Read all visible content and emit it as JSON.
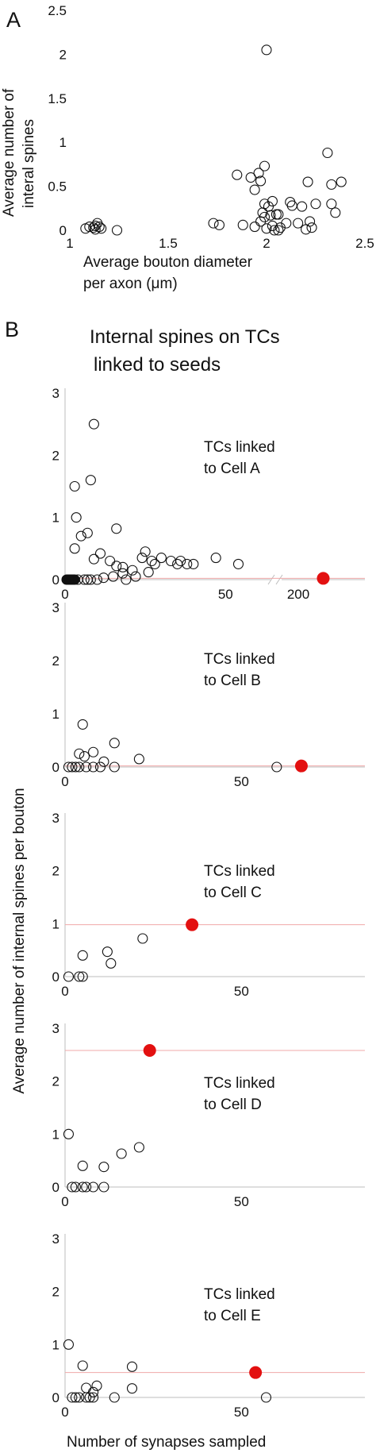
{
  "figure": {
    "panel_a_label": "A",
    "panel_b_label": "B",
    "panel_b_title_line1": "Internal spines on TCs",
    "panel_b_title_line2": "linked to seeds",
    "shared_ylabel": "Average number of internal spines per bouton",
    "shared_xlabel": "Number of synapses sampled",
    "highlight_color": "#e31010"
  },
  "chart_data": [
    {
      "id": "A",
      "type": "scatter",
      "xlabel_line1": "Average bouton diameter",
      "xlabel_line2": "per axon (μm)",
      "ylabel_line1": "Average number of",
      "ylabel_line2": "interal spines",
      "xlim": [
        1,
        2.5
      ],
      "ylim": [
        0,
        2.5
      ],
      "xticks": [
        "1",
        "1.5",
        "2",
        "2.5"
      ],
      "yticks": [
        "0",
        "0.5",
        "1",
        "1.5",
        "2",
        "2.5"
      ],
      "grid": false,
      "series": [
        {
          "points": [
            [
              1.08,
              0.02
            ],
            [
              1.1,
              0.04
            ],
            [
              1.12,
              0.03
            ],
            [
              1.13,
              0.05
            ],
            [
              1.13,
              0.01
            ],
            [
              1.14,
              0.08
            ],
            [
              1.15,
              0.04
            ],
            [
              1.16,
              0.02
            ],
            [
              1.24,
              0.0
            ],
            [
              1.73,
              0.08
            ],
            [
              1.76,
              0.06
            ],
            [
              1.85,
              0.63
            ],
            [
              1.88,
              0.06
            ],
            [
              1.92,
              0.6
            ],
            [
              1.94,
              0.46
            ],
            [
              1.94,
              0.04
            ],
            [
              1.96,
              0.65
            ],
            [
              1.97,
              0.56
            ],
            [
              1.97,
              0.1
            ],
            [
              1.98,
              0.2
            ],
            [
              1.99,
              0.73
            ],
            [
              1.99,
              0.3
            ],
            [
              1.99,
              0.15
            ],
            [
              2.0,
              2.05
            ],
            [
              2.0,
              0.02
            ],
            [
              2.01,
              0.27
            ],
            [
              2.02,
              0.17
            ],
            [
              2.03,
              0.33
            ],
            [
              2.03,
              0.05
            ],
            [
              2.04,
              0.0
            ],
            [
              2.05,
              0.18
            ],
            [
              2.06,
              0.18
            ],
            [
              2.06,
              0.0
            ],
            [
              2.07,
              0.03
            ],
            [
              2.1,
              0.08
            ],
            [
              2.12,
              0.32
            ],
            [
              2.13,
              0.28
            ],
            [
              2.16,
              0.08
            ],
            [
              2.18,
              0.27
            ],
            [
              2.2,
              0.01
            ],
            [
              2.21,
              0.55
            ],
            [
              2.22,
              0.1
            ],
            [
              2.23,
              0.03
            ],
            [
              2.25,
              0.3
            ],
            [
              2.31,
              0.88
            ],
            [
              2.33,
              0.52
            ],
            [
              2.33,
              0.3
            ],
            [
              2.35,
              0.2
            ],
            [
              2.38,
              0.55
            ]
          ]
        }
      ]
    },
    {
      "id": "B-A",
      "type": "scatter",
      "annotation_line1": "TCs linked",
      "annotation_line2": "to Cell A",
      "xlim": [
        0,
        240
      ],
      "axis_break": [
        65,
        190
      ],
      "ylim": [
        0,
        3
      ],
      "xticks": [
        "0",
        "50",
        "200"
      ],
      "yticks": [
        "0",
        "1",
        "2",
        "3"
      ],
      "reference_y": 0.02,
      "highlight_point": [
        215,
        0.02
      ],
      "series": [
        {
          "name": "filled",
          "points": [
            [
              0.5,
              0
            ],
            [
              1,
              0
            ],
            [
              1.5,
              0
            ],
            [
              2,
              0
            ],
            [
              2.5,
              0
            ],
            [
              3,
              0
            ]
          ]
        },
        {
          "name": "open",
          "points": [
            [
              3,
              0.5
            ],
            [
              3,
              1.5
            ],
            [
              3.5,
              1.0
            ],
            [
              4,
              0
            ],
            [
              5,
              0.7
            ],
            [
              6,
              0
            ],
            [
              7,
              0.75
            ],
            [
              7,
              0
            ],
            [
              8,
              1.6
            ],
            [
              8,
              0
            ],
            [
              9,
              2.5
            ],
            [
              9,
              0.33
            ],
            [
              10,
              0
            ],
            [
              11,
              0.42
            ],
            [
              12,
              0.03
            ],
            [
              14,
              0.3
            ],
            [
              15,
              0.05
            ],
            [
              16,
              0.22
            ],
            [
              16,
              0.82
            ],
            [
              18,
              0.2
            ],
            [
              18,
              0.1
            ],
            [
              19,
              0.0
            ],
            [
              21,
              0.15
            ],
            [
              22,
              0.05
            ],
            [
              24,
              0.35
            ],
            [
              25,
              0.45
            ],
            [
              26,
              0.12
            ],
            [
              27,
              0.3
            ],
            [
              28,
              0.25
            ],
            [
              30,
              0.35
            ],
            [
              33,
              0.3
            ],
            [
              35,
              0.25
            ],
            [
              36,
              0.3
            ],
            [
              38,
              0.25
            ],
            [
              40,
              0.25
            ],
            [
              47,
              0.35
            ],
            [
              54,
              0.25
            ]
          ]
        }
      ]
    },
    {
      "id": "B-B",
      "type": "scatter",
      "annotation_line1": "TCs linked",
      "annotation_line2": "to Cell B",
      "xlim": [
        0,
        85
      ],
      "ylim": [
        0,
        3
      ],
      "xticks": [
        "0",
        "50"
      ],
      "yticks": [
        "0",
        "1",
        "2",
        "3"
      ],
      "reference_y": 0.02,
      "highlight_point": [
        67,
        0.02
      ],
      "series": [
        {
          "points": [
            [
              1,
              0
            ],
            [
              2,
              0
            ],
            [
              3,
              0
            ],
            [
              4,
              0.25
            ],
            [
              4,
              0
            ],
            [
              5,
              0.8
            ],
            [
              5.5,
              0.2
            ],
            [
              6,
              0
            ],
            [
              8,
              0.28
            ],
            [
              8,
              0
            ],
            [
              10,
              0
            ],
            [
              11,
              0.1
            ],
            [
              14,
              0.45
            ],
            [
              14,
              0
            ],
            [
              21,
              0.15
            ],
            [
              60,
              0
            ]
          ]
        }
      ]
    },
    {
      "id": "B-C",
      "type": "scatter",
      "annotation_line1": "TCs linked",
      "annotation_line2": "to Cell C",
      "xlim": [
        0,
        85
      ],
      "ylim": [
        0,
        3
      ],
      "xticks": [
        "0",
        "50"
      ],
      "yticks": [
        "0",
        "1",
        "2",
        "3"
      ],
      "reference_y": 0.98,
      "highlight_point": [
        36,
        0.98
      ],
      "series": [
        {
          "points": [
            [
              1,
              0
            ],
            [
              4,
              0
            ],
            [
              5,
              0
            ],
            [
              5,
              0.4
            ],
            [
              12,
              0.47
            ],
            [
              13,
              0.25
            ],
            [
              22,
              0.72
            ]
          ]
        }
      ]
    },
    {
      "id": "B-D",
      "type": "scatter",
      "annotation_line1": "TCs linked",
      "annotation_line2": "to Cell D",
      "xlim": [
        0,
        85
      ],
      "ylim": [
        0,
        3
      ],
      "xticks": [
        "0",
        "50"
      ],
      "yticks": [
        "0",
        "1",
        "2",
        "3"
      ],
      "reference_y": 2.58,
      "highlight_point": [
        24,
        2.58
      ],
      "series": [
        {
          "points": [
            [
              1,
              1.0
            ],
            [
              2,
              0
            ],
            [
              3,
              0
            ],
            [
              5,
              0
            ],
            [
              5,
              0.4
            ],
            [
              6,
              0
            ],
            [
              8,
              0
            ],
            [
              11,
              0
            ],
            [
              11,
              0.38
            ],
            [
              16,
              0.63
            ],
            [
              21,
              0.75
            ]
          ]
        }
      ]
    },
    {
      "id": "B-E",
      "type": "scatter",
      "annotation_line1": "TCs linked",
      "annotation_line2": "to Cell E",
      "xlim": [
        0,
        85
      ],
      "ylim": [
        0,
        3
      ],
      "xticks": [
        "0",
        "50"
      ],
      "yticks": [
        "0",
        "1",
        "2",
        "3"
      ],
      "reference_y": 0.47,
      "highlight_point": [
        54,
        0.47
      ],
      "series": [
        {
          "points": [
            [
              1,
              1.0
            ],
            [
              2,
              0
            ],
            [
              3,
              0
            ],
            [
              4,
              0
            ],
            [
              5,
              0.6
            ],
            [
              6,
              0.18
            ],
            [
              6,
              0
            ],
            [
              7,
              0
            ],
            [
              8,
              0.1
            ],
            [
              8,
              0
            ],
            [
              9,
              0.22
            ],
            [
              14,
              0
            ],
            [
              19,
              0.58
            ],
            [
              19,
              0.17
            ],
            [
              57,
              0
            ]
          ]
        }
      ]
    }
  ]
}
